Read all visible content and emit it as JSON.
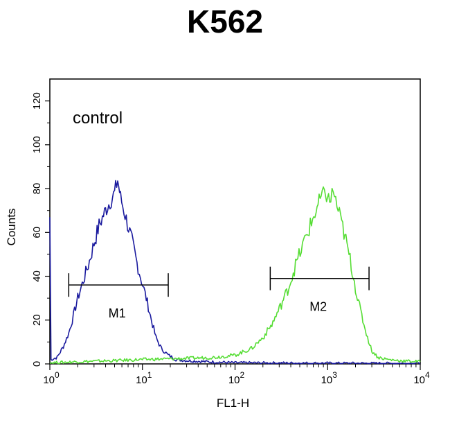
{
  "chart_data": {
    "type": "line",
    "title": "K562",
    "xlabel": "FL1-H",
    "ylabel": "Counts",
    "x_scale": "log",
    "xlim": [
      1,
      10000
    ],
    "ylim": [
      0,
      130
    ],
    "y_ticks": [
      0,
      20,
      40,
      60,
      80,
      100,
      120
    ],
    "x_ticks": [
      {
        "value": 1,
        "base": "10",
        "exp": "0"
      },
      {
        "value": 10,
        "base": "10",
        "exp": "1"
      },
      {
        "value": 100,
        "base": "10",
        "exp": "2"
      },
      {
        "value": 1000,
        "base": "10",
        "exp": "3"
      },
      {
        "value": 10000,
        "base": "10",
        "exp": "4"
      }
    ],
    "annotation": "control",
    "series": [
      {
        "color": "#1a1a9e",
        "points": [
          [
            1.0,
            67
          ],
          [
            1.03,
            2
          ],
          [
            1.2,
            3
          ],
          [
            1.4,
            8
          ],
          [
            1.6,
            14
          ],
          [
            1.8,
            22
          ],
          [
            2.0,
            30
          ],
          [
            2.3,
            38
          ],
          [
            2.6,
            45
          ],
          [
            3.0,
            55
          ],
          [
            3.4,
            63
          ],
          [
            3.8,
            68
          ],
          [
            4.2,
            72
          ],
          [
            4.6,
            75
          ],
          [
            5.0,
            78
          ],
          [
            5.4,
            84
          ],
          [
            5.8,
            76
          ],
          [
            6.5,
            68
          ],
          [
            7.5,
            58
          ],
          [
            8.5,
            48
          ],
          [
            9.5,
            40
          ],
          [
            11,
            30
          ],
          [
            12.5,
            20
          ],
          [
            14,
            12
          ],
          [
            16,
            7
          ],
          [
            19,
            4
          ],
          [
            23,
            2
          ],
          [
            30,
            1.5
          ],
          [
            50,
            1
          ],
          [
            100,
            0.5
          ],
          [
            1000,
            0.3
          ],
          [
            10000,
            0.2
          ]
        ]
      },
      {
        "color": "#55dd33",
        "points": [
          [
            1.0,
            0.5
          ],
          [
            2,
            1
          ],
          [
            5,
            1.5
          ],
          [
            10,
            2
          ],
          [
            30,
            2.5
          ],
          [
            60,
            3
          ],
          [
            100,
            4
          ],
          [
            150,
            7
          ],
          [
            200,
            12
          ],
          [
            250,
            18
          ],
          [
            300,
            25
          ],
          [
            380,
            35
          ],
          [
            450,
            45
          ],
          [
            550,
            55
          ],
          [
            650,
            63
          ],
          [
            750,
            70
          ],
          [
            850,
            76
          ],
          [
            950,
            78
          ],
          [
            1050,
            74
          ],
          [
            1150,
            79
          ],
          [
            1300,
            70
          ],
          [
            1500,
            60
          ],
          [
            1700,
            50
          ],
          [
            1900,
            40
          ],
          [
            2100,
            30
          ],
          [
            2400,
            20
          ],
          [
            2700,
            12
          ],
          [
            3000,
            6
          ],
          [
            3500,
            3
          ],
          [
            4500,
            2
          ],
          [
            6000,
            1.5
          ],
          [
            10000,
            1
          ]
        ]
      }
    ],
    "gates": [
      {
        "label": "M1",
        "x_start": 1.6,
        "x_end": 19,
        "y": 36
      },
      {
        "label": "M2",
        "x_start": 240,
        "x_end": 2800,
        "y": 39
      }
    ]
  }
}
